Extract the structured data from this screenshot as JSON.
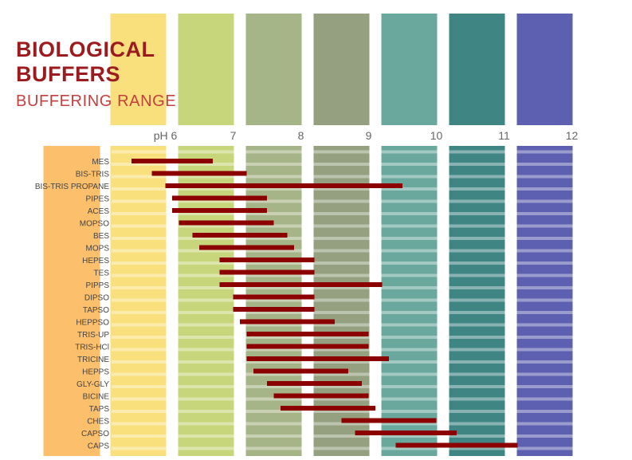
{
  "title_line1": "BIOLOGICAL",
  "title_line2": "BUFFERS",
  "subtitle": "BUFFERING RANGE",
  "chart_data": {
    "type": "bar",
    "orientation": "horizontal-range",
    "x_axis": {
      "label_prefix": "pH",
      "ticks": [
        "pH 6",
        "7",
        "8",
        "9",
        "10",
        "11",
        "12"
      ],
      "range": [
        5.3,
        12.4
      ]
    },
    "bar_color": "#8b0000",
    "ph_band_colors": {
      "5": "#fcbf6c",
      "6": "#f9e07c",
      "7": "#c7d67a",
      "8": "#a6b587",
      "9": "#94a07f",
      "10": "#6aa89d",
      "11": "#3f8584",
      "12": "#5d60b1"
    },
    "buffers": [
      {
        "name": "MES",
        "low": 5.5,
        "high": 6.7
      },
      {
        "name": "BIS-TRIS",
        "low": 5.8,
        "high": 7.2
      },
      {
        "name": "BIS-TRIS PROPANE",
        "low": 6.0,
        "high": 9.5
      },
      {
        "name": "PIPES",
        "low": 6.1,
        "high": 7.5
      },
      {
        "name": "ACES",
        "low": 6.1,
        "high": 7.5
      },
      {
        "name": "MOPSO",
        "low": 6.2,
        "high": 7.6
      },
      {
        "name": "BES",
        "low": 6.4,
        "high": 7.8
      },
      {
        "name": "MOPS",
        "low": 6.5,
        "high": 7.9
      },
      {
        "name": "HEPES",
        "low": 6.8,
        "high": 8.2
      },
      {
        "name": "TES",
        "low": 6.8,
        "high": 8.2
      },
      {
        "name": "PIPPS",
        "low": 6.8,
        "high": 9.2
      },
      {
        "name": "DIPSO",
        "low": 7.0,
        "high": 8.2
      },
      {
        "name": "TAPSO",
        "low": 7.0,
        "high": 8.2
      },
      {
        "name": "HEPPSO",
        "low": 7.1,
        "high": 8.5
      },
      {
        "name": "TRIS-UP",
        "low": 7.2,
        "high": 9.0
      },
      {
        "name": "TRIS-HCl",
        "low": 7.2,
        "high": 9.0
      },
      {
        "name": "TRICINE",
        "low": 7.2,
        "high": 9.3
      },
      {
        "name": "HEPPS",
        "low": 7.3,
        "high": 8.7
      },
      {
        "name": "GLY-GLY",
        "low": 7.5,
        "high": 8.9
      },
      {
        "name": "BICINE",
        "low": 7.6,
        "high": 9.0
      },
      {
        "name": "TAPS",
        "low": 7.7,
        "high": 9.1
      },
      {
        "name": "CHES",
        "low": 8.6,
        "high": 10.0
      },
      {
        "name": "CAPSO",
        "low": 8.8,
        "high": 10.3
      },
      {
        "name": "CAPS",
        "low": 9.4,
        "high": 11.2
      }
    ]
  }
}
